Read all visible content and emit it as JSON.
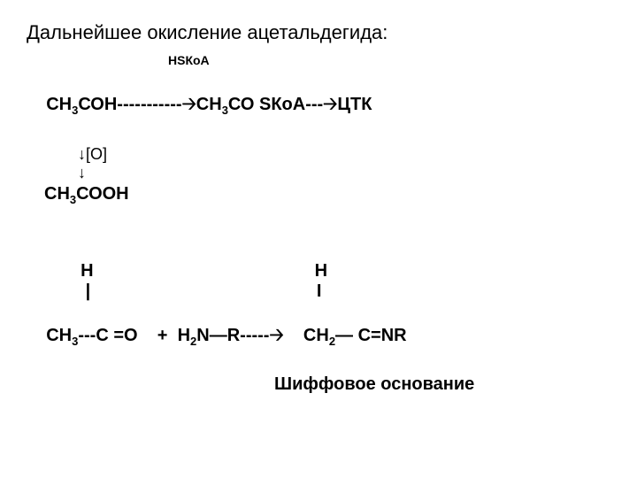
{
  "title": "Дальнейшее окисление ацетальдегида:",
  "hs_annot": "HSКoA",
  "rx1": {
    "left": "СН",
    "left_sub": "3",
    "left2": "СОН-----------🡢СН",
    "left2_sub": "3",
    "left3": "СО SКоА---🡢ЦТК"
  },
  "oline": "↓[O]",
  "arrowdown": "↓",
  "product": {
    "pre": "СН",
    "sub": "3",
    "post": "СООН"
  },
  "struct": {
    "top": "           Н                                             Н",
    "bar": "            |                                              І",
    "main_a": "СН",
    "main_a_sub": "3",
    "main_b": "---С =О    +  Н",
    "main_b_sub": "2",
    "main_c": "N—R-----🡢    СН",
    "main_c_sub": "2",
    "main_d": "— С=NR"
  },
  "schiff": "Шиффовое основание"
}
